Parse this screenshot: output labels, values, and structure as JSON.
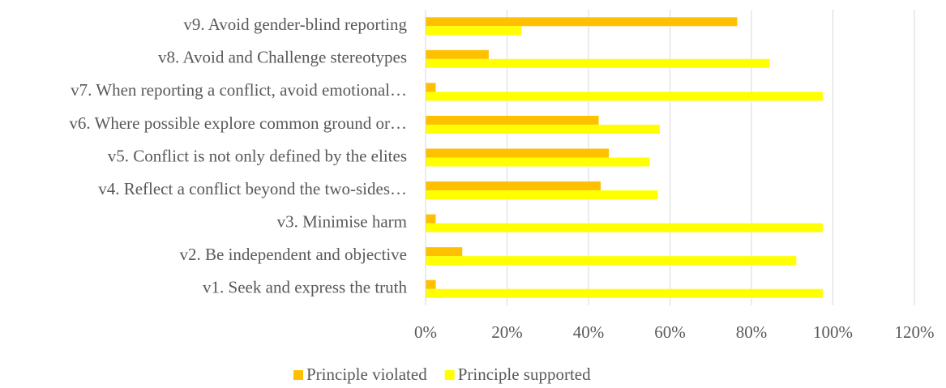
{
  "chart_data": {
    "type": "hbar",
    "categories": [
      "v1. Seek and express the truth",
      "v2. Be independent and objective",
      "v3. Minimise harm",
      "v4. Reflect a conflict beyond the two-sides…",
      "v5. Conflict is not only defined by the elites",
      "v6. Where possible explore common ground or…",
      "v7. When reporting a conflict, avoid emotional…",
      "v8. Avoid and Challenge stereotypes",
      "v9. Avoid gender-blind reporting"
    ],
    "series": [
      {
        "name": "Principle violated",
        "color": "#ffc000",
        "values": [
          2.5,
          9,
          2.5,
          43,
          45,
          42.5,
          2.5,
          15.5,
          76.5
        ]
      },
      {
        "name": "Principle supported",
        "color": "#ffff00",
        "values": [
          97.5,
          91,
          97.5,
          57,
          55,
          57.5,
          97.5,
          84.5,
          23.5
        ]
      }
    ],
    "xlim": [
      0,
      120
    ],
    "xticks": [
      {
        "value": 0,
        "label": "0%"
      },
      {
        "value": 20,
        "label": "20%"
      },
      {
        "value": 40,
        "label": "40%"
      },
      {
        "value": 60,
        "label": "60%"
      },
      {
        "value": 80,
        "label": "80%"
      },
      {
        "value": 100,
        "label": "100%"
      },
      {
        "value": 120,
        "label": "120%"
      }
    ],
    "grid": true,
    "legend": "bottom"
  }
}
